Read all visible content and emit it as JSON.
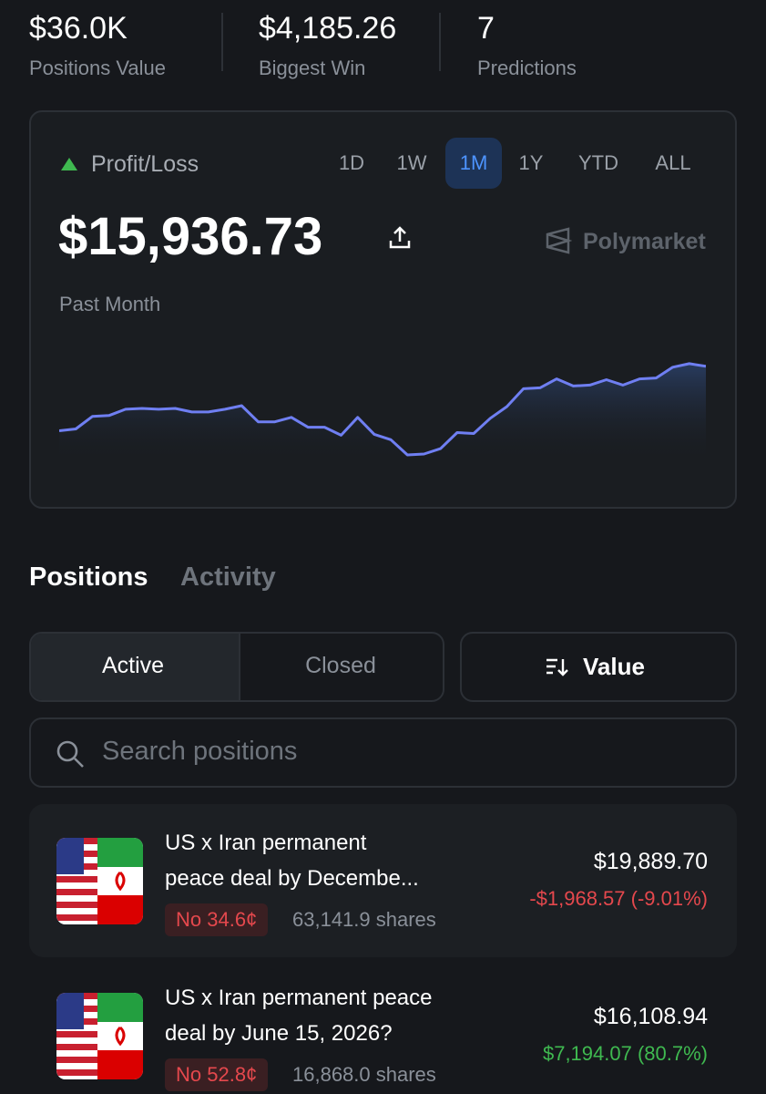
{
  "stats": [
    {
      "value": "$36.0K",
      "label": "Positions Value"
    },
    {
      "value": "$4,185.26",
      "label": "Biggest Win"
    },
    {
      "value": "7",
      "label": "Predictions"
    }
  ],
  "pnl": {
    "title": "Profit/Loss",
    "ranges": [
      "1D",
      "1W",
      "1M",
      "1Y",
      "YTD",
      "ALL"
    ],
    "active_range": 2,
    "amount": "$15,936.73",
    "brand": "Polymarket",
    "period": "Past Month"
  },
  "chart_data": {
    "type": "line",
    "color": "#6f7ff2",
    "ylim": [
      0,
      110
    ],
    "values": [
      28,
      30,
      44,
      45,
      52,
      53,
      52,
      53,
      49,
      49,
      52,
      56,
      38,
      38,
      43,
      32,
      32,
      23,
      43,
      24,
      18,
      1,
      2,
      8,
      26,
      25,
      42,
      55,
      75,
      76,
      86,
      78,
      79,
      85,
      79,
      86,
      87,
      99,
      103,
      100
    ]
  },
  "tabs": [
    "Positions",
    "Activity"
  ],
  "filters": [
    "Active",
    "Closed"
  ],
  "sort": "Value",
  "search_placeholder": "Search positions",
  "positions": [
    {
      "title_lines": [
        "US x Iran permanent",
        "peace deal by Decembe..."
      ],
      "outcome": "No 34.6¢",
      "shares": "63,141.9 shares",
      "value": "$19,889.70",
      "change": "-$1,968.57 (-9.01%)",
      "change_color": "#e5484d"
    },
    {
      "title_lines": [
        "US x Iran permanent peace",
        "deal by June 15, 2026?"
      ],
      "outcome": "No 52.8¢",
      "shares": "16,868.0 shares",
      "value": "$16,108.94",
      "change": "$7,194.07 (80.7%)",
      "change_color": "#3fb950"
    }
  ]
}
